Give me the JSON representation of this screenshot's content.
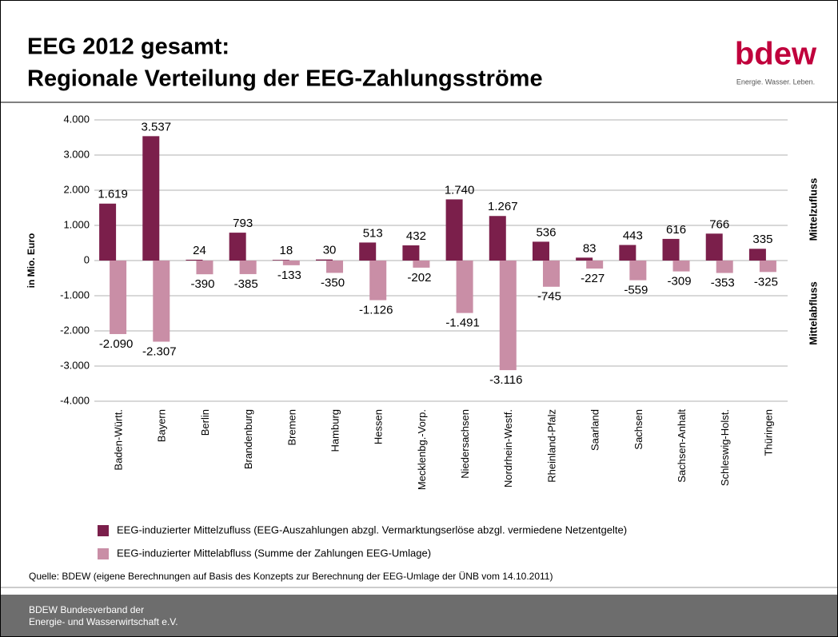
{
  "header": {
    "title_lines": [
      "EEG 2012 gesamt:",
      "Regionale Verteilung der EEG-Zahlungsströme"
    ]
  },
  "logo": {
    "name": "bdew",
    "tagline": "Energie. Wasser. Leben."
  },
  "chart_data": {
    "type": "bar",
    "y_label": "in Mio. Euro",
    "annotations": [
      "Mittelzufluss",
      "Mittelabfluss"
    ],
    "categories": [
      "Baden-Württ.",
      "Bayern",
      "Berlin",
      "Brandenburg",
      "Bremen",
      "Hamburg",
      "Hessen",
      "Mecklenbg.-Vorp.",
      "Niedersachsen",
      "Nordrhein-Westf.",
      "Rheinland-Pfalz",
      "Saarland",
      "Sachsen",
      "Sachsen-Anhalt",
      "Schleswig-Holst.",
      "Thüringen"
    ],
    "series": [
      {
        "name": "EEG-induzierter Mittelzufluss (EEG-Auszahlungen abzgl. Vermarktungserlöse abzgl. vermiedene Netzentgelte)",
        "color": "#7b1f4b",
        "values": [
          1619,
          3537,
          24,
          793,
          18,
          30,
          513,
          432,
          1740,
          1267,
          536,
          83,
          443,
          616,
          766,
          335
        ],
        "value_labels": [
          "1.619",
          "3.537",
          "24",
          "793",
          "18",
          "30",
          "513",
          "432",
          "1.740",
          "1.267",
          "536",
          "83",
          "443",
          "616",
          "766",
          "335"
        ]
      },
      {
        "name": "EEG-induzierter Mittelabfluss (Summe der Zahlungen EEG-Umlage)",
        "color": "#c98ea6",
        "values": [
          -2090,
          -2307,
          -390,
          -385,
          -133,
          -350,
          -1126,
          -202,
          -1491,
          -3116,
          -745,
          -227,
          -559,
          -309,
          -353,
          -325
        ],
        "value_labels": [
          "-2.090",
          "-2.307",
          "-390",
          "-385",
          "-133",
          "-350",
          "-1.126",
          "-202",
          "-1.491",
          "-3.116",
          "-745",
          "-227",
          "-559",
          "-309",
          "-353",
          "-325"
        ]
      }
    ],
    "ylim": [
      -4000,
      4000
    ],
    "yticks": [
      {
        "value": 4000,
        "label": "4.000"
      },
      {
        "value": 3000,
        "label": "3.000"
      },
      {
        "value": 2000,
        "label": "2.000"
      },
      {
        "value": 1000,
        "label": "1.000"
      },
      0,
      {
        "value": -1000,
        "label": "-1.000"
      },
      {
        "value": -2000,
        "label": "-2.000"
      },
      {
        "value": -3000,
        "label": "-3.000"
      },
      {
        "value": -4000,
        "label": "-4.000"
      }
    ],
    "grid": true
  },
  "source": "Quelle: BDEW (eigene Berechnungen auf Basis des Konzepts zur Berechnung der EEG-Umlage der ÜNB vom 14.10.2011)",
  "footer": {
    "lines": [
      "BDEW Bundesverband der",
      "Energie- und Wasserwirtschaft e.V."
    ]
  }
}
